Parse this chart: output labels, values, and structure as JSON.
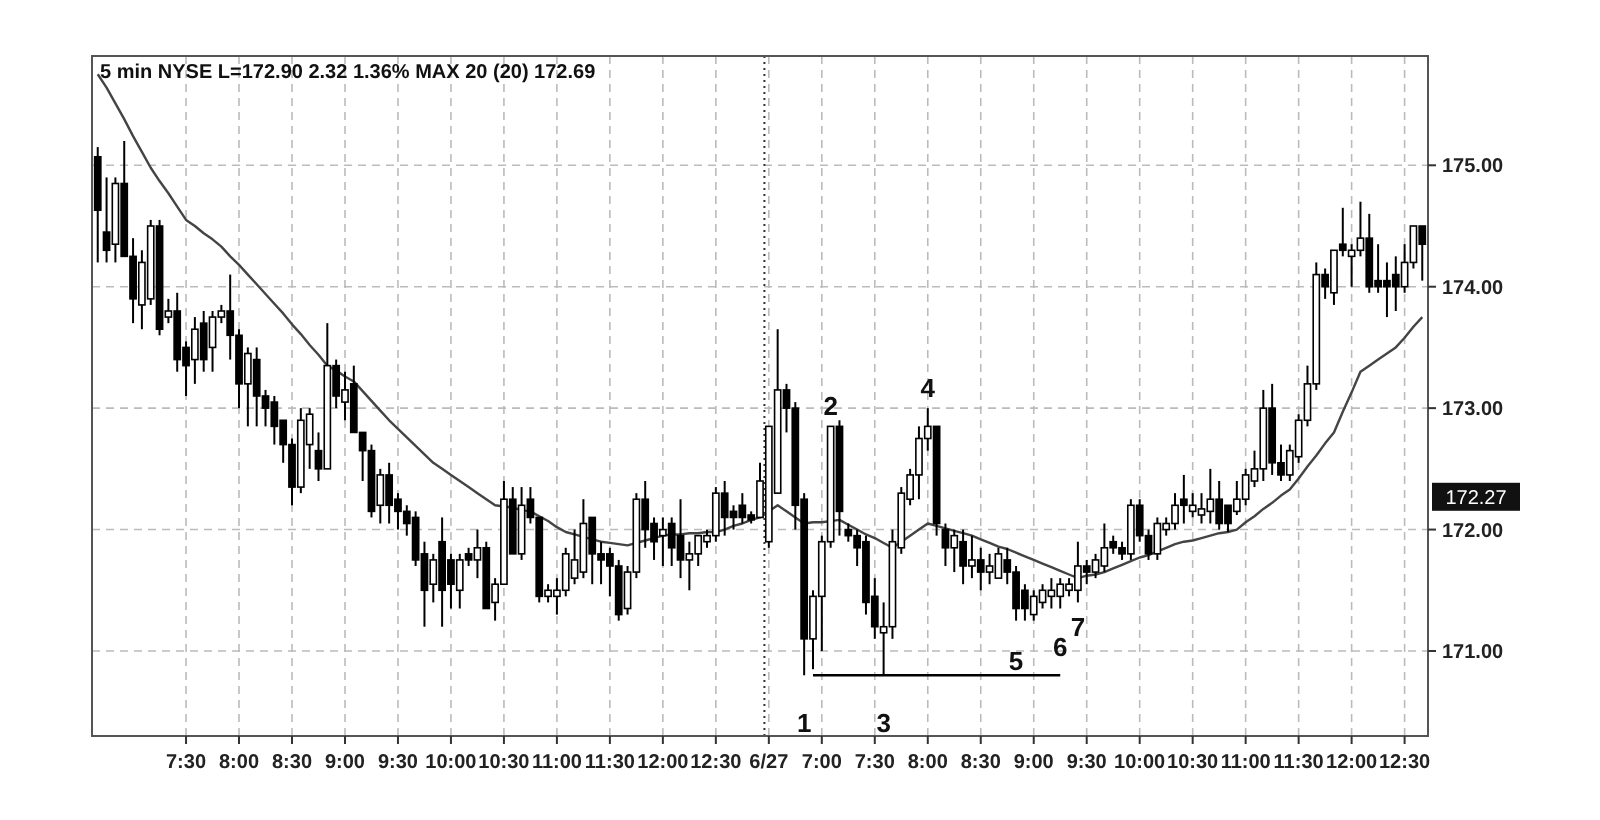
{
  "chart_data": {
    "type": "candlestick",
    "title": "5 min NYSE L=172.90 2.32 1.36% MAX 20 (20) 172.69",
    "color": "#000000",
    "categories": [
      null,
      null,
      null,
      null,
      null,
      null,
      null,
      null,
      null,
      null,
      "7:30",
      null,
      null,
      null,
      null,
      null,
      "8:00",
      null,
      null,
      null,
      null,
      null,
      "8:30",
      null,
      null,
      null,
      null,
      null,
      "9:00",
      null,
      null,
      null,
      null,
      null,
      "9:30",
      null,
      null,
      null,
      null,
      null,
      "10:00",
      null,
      null,
      null,
      null,
      null,
      "10:30",
      null,
      null,
      null,
      null,
      null,
      "11:00",
      null,
      null,
      null,
      null,
      null,
      "11:30",
      null,
      null,
      null,
      null,
      null,
      "12:00",
      null,
      null,
      null,
      null,
      null,
      "12:30",
      null,
      null,
      null,
      null,
      null,
      "6/27",
      null,
      null,
      null,
      null,
      null,
      "7:00",
      null,
      null,
      null,
      null,
      null,
      "7:30",
      null,
      null,
      null,
      null,
      null,
      "8:00",
      null,
      null,
      null,
      null,
      null,
      "8:30",
      null,
      null,
      null,
      null,
      null,
      "9:00",
      null,
      null,
      null,
      null,
      null,
      "9:30",
      null,
      null,
      null,
      null,
      null,
      "10:00",
      null,
      null,
      null,
      null,
      null,
      "10:30",
      null,
      null,
      null,
      null,
      null,
      "11:00",
      null,
      null,
      null,
      null,
      null,
      "11:30",
      null,
      null,
      null,
      null,
      null,
      "12:00",
      null,
      null,
      null,
      null,
      null,
      "12:30",
      null,
      null
    ],
    "ohlc": [
      [
        175.07,
        175.15,
        174.2,
        174.63
      ],
      [
        174.45,
        174.9,
        174.2,
        174.3
      ],
      [
        174.35,
        174.9,
        174.2,
        174.85
      ],
      [
        174.85,
        175.2,
        174.25,
        174.25
      ],
      [
        174.25,
        174.4,
        173.7,
        173.9
      ],
      [
        173.85,
        174.3,
        173.65,
        174.2
      ],
      [
        173.9,
        174.55,
        173.85,
        174.5
      ],
      [
        174.5,
        174.55,
        173.6,
        173.65
      ],
      [
        173.75,
        173.9,
        173.7,
        173.8
      ],
      [
        173.8,
        173.95,
        173.3,
        173.4
      ],
      [
        173.5,
        173.55,
        173.1,
        173.35
      ],
      [
        173.4,
        173.75,
        173.2,
        173.65
      ],
      [
        173.7,
        173.8,
        173.3,
        173.4
      ],
      [
        173.5,
        173.8,
        173.3,
        173.75
      ],
      [
        173.75,
        173.85,
        173.7,
        173.8
      ],
      [
        173.8,
        174.1,
        173.4,
        173.6
      ],
      [
        173.6,
        173.65,
        173.0,
        173.2
      ],
      [
        173.2,
        173.5,
        172.85,
        173.45
      ],
      [
        173.4,
        173.5,
        172.85,
        173.1
      ],
      [
        173.1,
        173.15,
        172.85,
        173.0
      ],
      [
        173.05,
        173.1,
        172.7,
        172.85
      ],
      [
        172.9,
        172.9,
        172.55,
        172.7
      ],
      [
        172.7,
        172.75,
        172.2,
        172.35
      ],
      [
        172.35,
        173.0,
        172.3,
        172.9
      ],
      [
        172.7,
        173.0,
        172.5,
        172.95
      ],
      [
        172.65,
        172.8,
        172.4,
        172.5
      ],
      [
        172.5,
        173.7,
        172.5,
        173.35
      ],
      [
        173.35,
        173.4,
        173.0,
        173.1
      ],
      [
        173.05,
        173.3,
        172.9,
        173.15
      ],
      [
        173.2,
        173.35,
        172.8,
        172.8
      ],
      [
        172.8,
        172.8,
        172.4,
        172.65
      ],
      [
        172.65,
        172.7,
        172.1,
        172.15
      ],
      [
        172.2,
        172.5,
        172.05,
        172.45
      ],
      [
        172.45,
        172.55,
        172.05,
        172.2
      ],
      [
        172.25,
        172.3,
        172.0,
        172.15
      ],
      [
        172.15,
        172.2,
        171.95,
        172.05
      ],
      [
        172.1,
        172.15,
        171.7,
        171.75
      ],
      [
        171.8,
        171.9,
        171.2,
        171.5
      ],
      [
        171.55,
        171.8,
        171.4,
        171.75
      ],
      [
        171.9,
        172.1,
        171.2,
        171.5
      ],
      [
        171.75,
        171.8,
        171.35,
        171.55
      ],
      [
        171.5,
        171.8,
        171.35,
        171.75
      ],
      [
        171.8,
        171.85,
        171.7,
        171.75
      ],
      [
        171.75,
        172.0,
        171.6,
        171.85
      ],
      [
        171.85,
        171.9,
        171.35,
        171.35
      ],
      [
        171.4,
        171.6,
        171.25,
        171.55
      ],
      [
        171.55,
        172.4,
        171.55,
        172.25
      ],
      [
        172.25,
        172.35,
        171.8,
        171.8
      ],
      [
        171.8,
        172.35,
        171.75,
        172.2
      ],
      [
        172.25,
        172.35,
        172.05,
        172.1
      ],
      [
        172.1,
        172.1,
        171.4,
        171.45
      ],
      [
        171.45,
        171.55,
        171.4,
        171.5
      ],
      [
        171.45,
        171.6,
        171.3,
        171.5
      ],
      [
        171.5,
        171.85,
        171.45,
        171.8
      ],
      [
        171.6,
        172.0,
        171.55,
        171.75
      ],
      [
        171.65,
        172.25,
        171.6,
        172.05
      ],
      [
        172.1,
        172.1,
        171.55,
        171.8
      ],
      [
        171.8,
        171.9,
        171.55,
        171.75
      ],
      [
        171.8,
        171.85,
        171.45,
        171.7
      ],
      [
        171.7,
        171.75,
        171.25,
        171.3
      ],
      [
        171.35,
        171.7,
        171.3,
        171.65
      ],
      [
        171.65,
        172.3,
        171.6,
        172.25
      ],
      [
        172.25,
        172.4,
        171.85,
        172.0
      ],
      [
        172.05,
        172.1,
        171.75,
        171.9
      ],
      [
        171.95,
        172.1,
        171.7,
        172.0
      ],
      [
        172.05,
        172.1,
        171.7,
        171.85
      ],
      [
        171.95,
        172.25,
        171.6,
        171.75
      ],
      [
        171.75,
        171.9,
        171.5,
        171.8
      ],
      [
        171.8,
        171.95,
        171.7,
        171.95
      ],
      [
        171.9,
        172.0,
        171.85,
        171.95
      ],
      [
        171.95,
        172.35,
        171.9,
        172.3
      ],
      [
        172.3,
        172.4,
        171.95,
        172.1
      ],
      [
        172.15,
        172.2,
        172.0,
        172.1
      ],
      [
        172.2,
        172.3,
        172.05,
        172.1
      ],
      [
        172.12,
        172.15,
        172.05,
        172.08
      ],
      [
        172.1,
        172.55,
        172.1,
        172.4
      ],
      [
        171.9,
        172.85,
        171.85,
        172.85
      ],
      [
        172.3,
        173.65,
        172.3,
        173.15
      ],
      [
        173.15,
        173.2,
        172.8,
        173.0
      ],
      [
        173.0,
        173.05,
        172.0,
        172.2
      ],
      [
        172.25,
        172.3,
        170.8,
        171.1
      ],
      [
        171.1,
        171.5,
        170.85,
        171.45
      ],
      [
        171.45,
        171.95,
        171.0,
        171.9
      ],
      [
        171.9,
        172.85,
        171.85,
        172.85
      ],
      [
        172.85,
        172.9,
        171.95,
        172.15
      ],
      [
        172.0,
        172.05,
        171.9,
        171.95
      ],
      [
        171.95,
        172.0,
        171.7,
        171.85
      ],
      [
        171.9,
        171.95,
        171.3,
        171.4
      ],
      [
        171.45,
        171.6,
        171.1,
        171.2
      ],
      [
        171.15,
        171.4,
        170.8,
        171.2
      ],
      [
        171.2,
        172.0,
        171.1,
        171.9
      ],
      [
        171.85,
        172.35,
        171.8,
        172.3
      ],
      [
        172.25,
        172.5,
        172.2,
        172.45
      ],
      [
        172.45,
        172.85,
        172.25,
        172.75
      ],
      [
        172.75,
        173.0,
        172.65,
        172.85
      ],
      [
        172.85,
        172.85,
        171.95,
        172.05
      ],
      [
        172.0,
        172.05,
        171.7,
        171.85
      ],
      [
        171.85,
        172.0,
        171.65,
        171.95
      ],
      [
        171.9,
        172.0,
        171.55,
        171.7
      ],
      [
        171.7,
        171.95,
        171.6,
        171.75
      ],
      [
        171.75,
        171.85,
        171.5,
        171.65
      ],
      [
        171.65,
        171.8,
        171.55,
        171.7
      ],
      [
        171.6,
        171.85,
        171.6,
        171.8
      ],
      [
        171.75,
        171.85,
        171.55,
        171.65
      ],
      [
        171.65,
        171.7,
        171.25,
        171.35
      ],
      [
        171.5,
        171.55,
        171.25,
        171.35
      ],
      [
        171.3,
        171.5,
        171.25,
        171.45
      ],
      [
        171.4,
        171.55,
        171.35,
        171.5
      ],
      [
        171.45,
        171.6,
        171.35,
        171.5
      ],
      [
        171.45,
        171.6,
        171.35,
        171.55
      ],
      [
        171.5,
        171.6,
        171.45,
        171.55
      ],
      [
        171.5,
        171.9,
        171.4,
        171.7
      ],
      [
        171.7,
        171.75,
        171.55,
        171.65
      ],
      [
        171.65,
        171.8,
        171.6,
        171.75
      ],
      [
        171.7,
        172.05,
        171.65,
        171.85
      ],
      [
        171.9,
        171.95,
        171.8,
        171.85
      ],
      [
        171.85,
        171.9,
        171.75,
        171.8
      ],
      [
        171.8,
        172.25,
        171.75,
        172.2
      ],
      [
        172.2,
        172.25,
        171.9,
        171.95
      ],
      [
        171.95,
        172.0,
        171.75,
        171.8
      ],
      [
        171.8,
        172.1,
        171.75,
        172.05
      ],
      [
        172.0,
        172.1,
        171.95,
        172.05
      ],
      [
        172.05,
        172.3,
        172.0,
        172.2
      ],
      [
        172.25,
        172.45,
        172.05,
        172.2
      ],
      [
        172.15,
        172.3,
        172.1,
        172.2
      ],
      [
        172.12,
        172.3,
        172.05,
        172.17
      ],
      [
        172.15,
        172.5,
        172.05,
        172.25
      ],
      [
        172.25,
        172.4,
        172.0,
        172.05
      ],
      [
        172.2,
        172.2,
        171.98,
        172.05
      ],
      [
        172.15,
        172.4,
        172.12,
        172.25
      ],
      [
        172.25,
        172.5,
        172.2,
        172.45
      ],
      [
        172.4,
        172.65,
        172.35,
        172.5
      ],
      [
        172.5,
        173.15,
        172.4,
        173.0
      ],
      [
        173.0,
        173.2,
        172.45,
        172.55
      ],
      [
        172.55,
        172.7,
        172.4,
        172.45
      ],
      [
        172.45,
        172.7,
        172.4,
        172.65
      ],
      [
        172.6,
        172.95,
        172.55,
        172.9
      ],
      [
        172.9,
        173.35,
        172.85,
        173.2
      ],
      [
        173.2,
        174.2,
        173.15,
        174.1
      ],
      [
        174.1,
        174.15,
        173.9,
        174.0
      ],
      [
        173.95,
        174.3,
        173.85,
        174.3
      ],
      [
        174.35,
        174.65,
        174.25,
        174.3
      ],
      [
        174.25,
        174.35,
        174.0,
        174.3
      ],
      [
        174.3,
        174.7,
        174.25,
        174.4
      ],
      [
        174.4,
        174.6,
        173.95,
        174.0
      ],
      [
        174.05,
        174.35,
        173.95,
        174.0
      ],
      [
        174.05,
        174.2,
        173.75,
        174.0
      ],
      [
        174.1,
        174.25,
        173.8,
        174.0
      ],
      [
        174.0,
        174.35,
        173.95,
        174.2
      ],
      [
        174.2,
        174.5,
        174.15,
        174.5
      ],
      [
        174.5,
        174.5,
        174.05,
        174.35
      ]
    ],
    "series": [
      {
        "type": "line",
        "color": "#444444",
        "values": [
          175.75,
          175.64,
          175.51,
          175.38,
          175.24,
          175.11,
          174.98,
          174.87,
          174.77,
          174.66,
          174.55,
          174.5,
          174.44,
          174.39,
          174.33,
          174.25,
          174.18,
          174.1,
          174.02,
          173.94,
          173.86,
          173.78,
          173.69,
          173.61,
          173.52,
          173.44,
          173.35,
          173.31,
          173.26,
          173.22,
          173.14,
          173.06,
          172.98,
          172.9,
          172.83,
          172.76,
          172.69,
          172.62,
          172.55,
          172.5,
          172.45,
          172.4,
          172.35,
          172.3,
          172.25,
          172.2,
          172.19,
          172.18,
          172.16,
          172.15,
          172.11,
          172.07,
          172.02,
          171.98,
          171.96,
          171.94,
          171.92,
          171.9,
          171.89,
          171.88,
          171.87,
          171.89,
          171.91,
          171.93,
          171.95,
          171.96,
          171.96,
          171.97,
          171.97,
          171.98,
          171.98,
          172.0,
          172.03,
          172.05,
          172.08,
          172.1,
          172.15,
          172.2,
          172.15,
          172.1,
          172.05,
          172.06,
          172.06,
          172.07,
          172.08,
          172.04,
          172.0,
          171.96,
          171.93,
          171.89,
          171.85,
          171.9,
          171.95,
          172.0,
          172.05,
          172.03,
          172.01,
          171.99,
          171.97,
          171.95,
          171.92,
          171.89,
          171.86,
          171.84,
          171.81,
          171.78,
          171.75,
          171.72,
          171.69,
          171.66,
          171.63,
          171.6,
          171.62,
          171.63,
          171.65,
          171.68,
          171.71,
          171.74,
          171.77,
          171.79,
          171.82,
          171.85,
          171.88,
          171.9,
          171.91,
          171.93,
          171.95,
          171.97,
          171.98,
          172.0,
          172.06,
          172.11,
          172.17,
          172.22,
          172.28,
          172.33,
          172.42,
          172.52,
          172.61,
          172.71,
          172.8,
          172.97,
          173.13,
          173.3,
          173.35,
          173.4,
          173.45,
          173.5,
          173.58,
          173.67,
          173.75
        ]
      },
      {
        "type": "line",
        "color": "#000000",
        "values": [
          null,
          null,
          null,
          null,
          null,
          null,
          null,
          null,
          null,
          null,
          null,
          null,
          null,
          null,
          null,
          null,
          null,
          null,
          null,
          null,
          null,
          null,
          null,
          null,
          null,
          null,
          null,
          null,
          null,
          null,
          null,
          null,
          null,
          null,
          null,
          null,
          null,
          null,
          null,
          null,
          null,
          null,
          null,
          null,
          null,
          null,
          null,
          null,
          null,
          null,
          null,
          null,
          null,
          null,
          null,
          null,
          null,
          null,
          null,
          null,
          null,
          null,
          null,
          null,
          null,
          null,
          null,
          null,
          null,
          null,
          null,
          null,
          null,
          null,
          null,
          null,
          null,
          null,
          null,
          null,
          null,
          170.8,
          170.8,
          170.8,
          170.8,
          170.8,
          170.8,
          170.8,
          170.8,
          170.8,
          170.8,
          170.8,
          170.8,
          170.8,
          170.8,
          170.8,
          170.8,
          170.8,
          170.8,
          170.8,
          170.8,
          170.8,
          170.8,
          170.8,
          170.8,
          170.8,
          170.8,
          170.8,
          170.8,
          170.8,
          null,
          null,
          null,
          null,
          null,
          null,
          null,
          null,
          null,
          null,
          null,
          null,
          null,
          null,
          null,
          null,
          null,
          null,
          null,
          null,
          null,
          null,
          null,
          null,
          null,
          null,
          null,
          null,
          null,
          null,
          null,
          null,
          null,
          null,
          null,
          null,
          null,
          null,
          null,
          null,
          null
        ]
      }
    ],
    "ylim": [
      170.3,
      175.9
    ],
    "yticks": [
      {
        "value": 171,
        "label": "171.00"
      },
      {
        "value": 172,
        "label": "172.00"
      },
      {
        "value": 173,
        "label": "173.00"
      },
      {
        "value": 174,
        "label": "174.00"
      },
      {
        "value": 175,
        "label": "175.00"
      }
    ],
    "grid": true,
    "ref_lines": [
      {
        "axis": "x",
        "value": "6/27",
        "line_style": "dotted"
      }
    ],
    "annotations": [
      "1",
      "2",
      "3",
      "4",
      "5",
      "6",
      "7",
      {
        "text": "172.27",
        "y": 172.27
      }
    ]
  }
}
